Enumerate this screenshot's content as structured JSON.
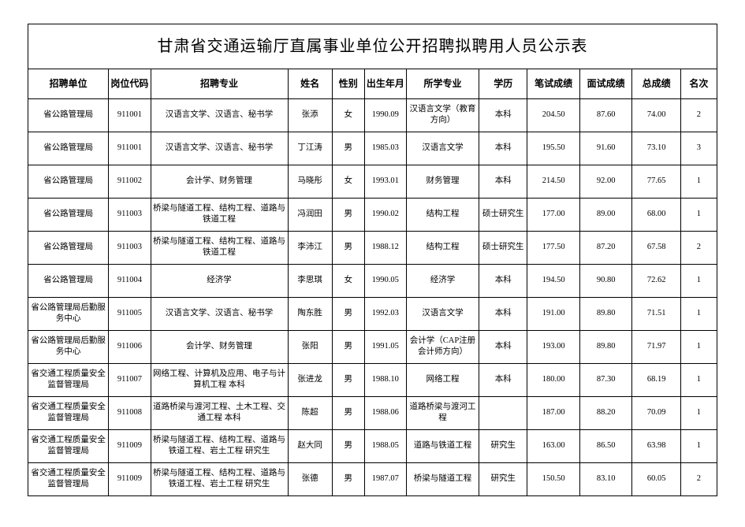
{
  "title": "甘肃省交通运输厅直属事业单位公开招聘拟聘用人员公示表",
  "headers": {
    "unit": "招聘单位",
    "code": "岗位代码",
    "major": "招聘专业",
    "name": "姓名",
    "gender": "性别",
    "birth": "出生年月",
    "studied": "所学专业",
    "edu": "学历",
    "written": "笔试成绩",
    "interview": "面试成绩",
    "total": "总成绩",
    "rank": "名次"
  },
  "rows": [
    {
      "unit": "省公路管理局",
      "code": "911001",
      "major": "汉语言文学、汉语言、秘书学",
      "name": "张添",
      "gender": "女",
      "birth": "1990.09",
      "studied": "汉语言文学（教育方向）",
      "edu": "本科",
      "written": "204.50",
      "interview": "87.60",
      "total": "74.00",
      "rank": "2"
    },
    {
      "unit": "省公路管理局",
      "code": "911001",
      "major": "汉语言文学、汉语言、秘书学",
      "name": "丁江涛",
      "gender": "男",
      "birth": "1985.03",
      "studied": "汉语言文学",
      "edu": "本科",
      "written": "195.50",
      "interview": "91.60",
      "total": "73.10",
      "rank": "3"
    },
    {
      "unit": "省公路管理局",
      "code": "911002",
      "major": "会计学、财务管理",
      "name": "马晓彤",
      "gender": "女",
      "birth": "1993.01",
      "studied": "财务管理",
      "edu": "本科",
      "written": "214.50",
      "interview": "92.00",
      "total": "77.65",
      "rank": "1"
    },
    {
      "unit": "省公路管理局",
      "code": "911003",
      "major": "桥梁与隧道工程、结构工程、道路与铁道工程",
      "name": "冯润田",
      "gender": "男",
      "birth": "1990.02",
      "studied": "结构工程",
      "edu": "硕士研究生",
      "written": "177.00",
      "interview": "89.00",
      "total": "68.00",
      "rank": "1"
    },
    {
      "unit": "省公路管理局",
      "code": "911003",
      "major": "桥梁与隧道工程、结构工程、道路与铁道工程",
      "name": "李沛江",
      "gender": "男",
      "birth": "1988.12",
      "studied": "结构工程",
      "edu": "硕士研究生",
      "written": "177.50",
      "interview": "87.20",
      "total": "67.58",
      "rank": "2"
    },
    {
      "unit": "省公路管理局",
      "code": "911004",
      "major": "经济学",
      "name": "李思琪",
      "gender": "女",
      "birth": "1990.05",
      "studied": "经济学",
      "edu": "本科",
      "written": "194.50",
      "interview": "90.80",
      "total": "72.62",
      "rank": "1"
    },
    {
      "unit": "省公路管理局后勤服务中心",
      "code": "911005",
      "major": "汉语言文学、汉语言、秘书学",
      "name": "陶东胜",
      "gender": "男",
      "birth": "1992.03",
      "studied": "汉语言文学",
      "edu": "本科",
      "written": "191.00",
      "interview": "89.80",
      "total": "71.51",
      "rank": "1"
    },
    {
      "unit": "省公路管理局后勤服务中心",
      "code": "911006",
      "major": "会计学、财务管理",
      "name": "张阳",
      "gender": "男",
      "birth": "1991.05",
      "studied": "会计学（CAP注册会计师方向）",
      "edu": "本科",
      "written": "193.00",
      "interview": "89.80",
      "total": "71.97",
      "rank": "1"
    },
    {
      "unit": "省交通工程质量安全监督管理局",
      "code": "911007",
      "major": "网络工程、计算机及应用、电子与计算机工程  本科",
      "name": "张进龙",
      "gender": "男",
      "birth": "1988.10",
      "studied": "网络工程",
      "edu": "本科",
      "written": "180.00",
      "interview": "87.30",
      "total": "68.19",
      "rank": "1"
    },
    {
      "unit": "省交通工程质量安全监督管理局",
      "code": "911008",
      "major": "道路桥梁与渡河工程、土木工程、交通工程  本科",
      "name": "陈超",
      "gender": "男",
      "birth": "1988.06",
      "studied": "道路桥梁与渡河工程",
      "edu": "",
      "written": "187.00",
      "interview": "88.20",
      "total": "70.09",
      "rank": "1"
    },
    {
      "unit": "省交通工程质量安全监督管理局",
      "code": "911009",
      "major": "桥梁与隧道工程、结构工程、道路与铁道工程、岩土工程  研究生",
      "name": "赵大同",
      "gender": "男",
      "birth": "1988.05",
      "studied": "道路与铁道工程",
      "edu": "研究生",
      "written": "163.00",
      "interview": "86.50",
      "total": "63.98",
      "rank": "1"
    },
    {
      "unit": "省交通工程质量安全监督管理局",
      "code": "911009",
      "major": "桥梁与隧道工程、结构工程、道路与铁道工程、岩土工程  研究生",
      "name": "张德",
      "gender": "男",
      "birth": "1987.07",
      "studied": "桥梁与隧道工程",
      "edu": "研究生",
      "written": "150.50",
      "interview": "83.10",
      "total": "60.05",
      "rank": "2"
    }
  ]
}
